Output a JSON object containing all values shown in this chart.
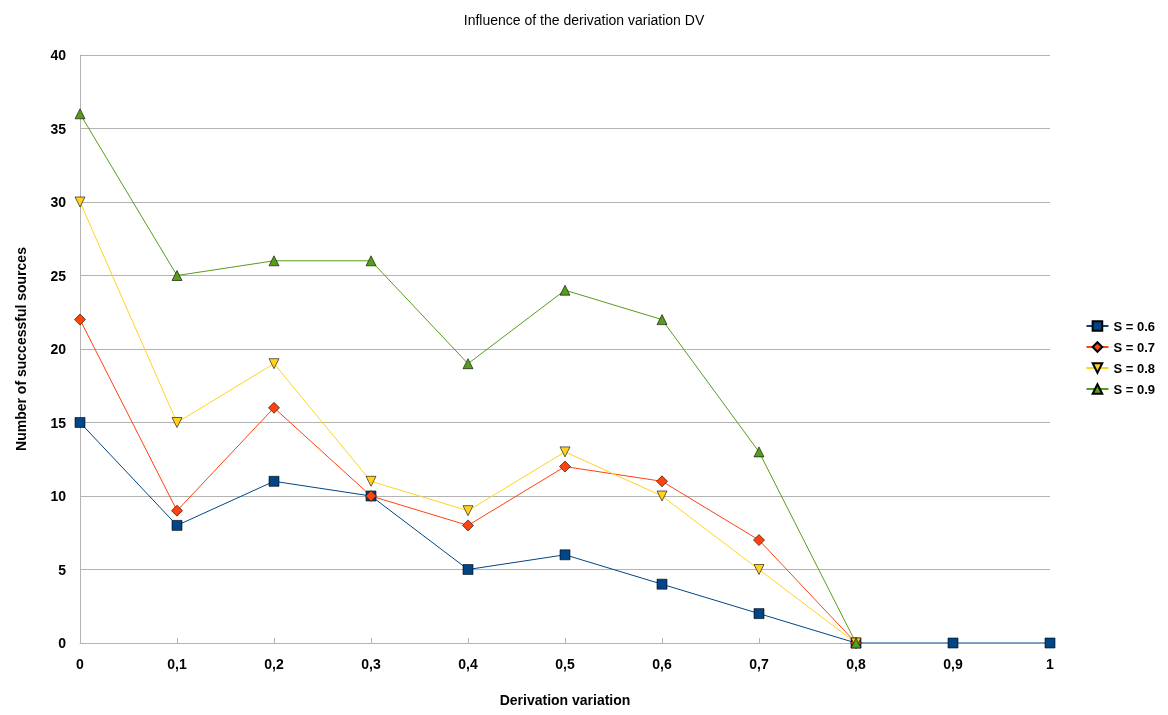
{
  "chart_data": {
    "type": "line",
    "title": "Influence of the derivation variation DV",
    "xlabel": "Derivation variation",
    "ylabel": "Number of successful sources",
    "categories": [
      "0",
      "0,1",
      "0,2",
      "0,3",
      "0,4",
      "0,5",
      "0,6",
      "0,7",
      "0,8",
      "0,9",
      "1"
    ],
    "series": [
      {
        "name": "S = 0.6",
        "color": "#004586",
        "marker": "square",
        "values": [
          15,
          8,
          11,
          10,
          5,
          6,
          4,
          2,
          0,
          0,
          0
        ]
      },
      {
        "name": "S = 0.7",
        "color": "#ff420e",
        "marker": "diamond",
        "values": [
          22,
          9,
          16,
          10,
          8,
          12,
          11,
          7,
          0,
          null,
          null
        ]
      },
      {
        "name": "S = 0.8",
        "color": "#ffd320",
        "marker": "triangle-down",
        "values": [
          30,
          15,
          19,
          11,
          9,
          13,
          10,
          5,
          0,
          null,
          null
        ]
      },
      {
        "name": "S = 0.9",
        "color": "#579d1c",
        "marker": "triangle",
        "values": [
          36,
          25,
          26,
          26,
          19,
          24,
          22,
          13,
          0,
          null,
          null
        ]
      }
    ],
    "ylim": [
      0,
      40
    ],
    "yticks": [
      0,
      5,
      10,
      15,
      20,
      25,
      30,
      35,
      40
    ],
    "grid": "y",
    "legend": "right",
    "line_style": "solid"
  }
}
